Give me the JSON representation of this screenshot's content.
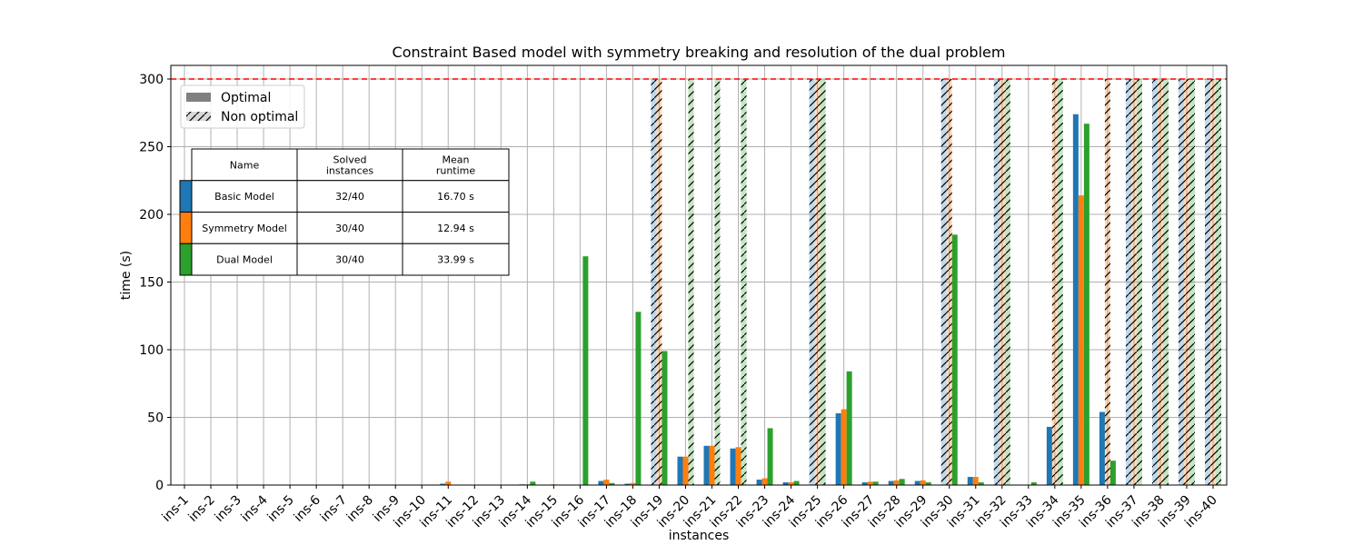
{
  "chart_data": {
    "type": "bar",
    "title": "Constraint Based model with symmetry breaking and resolution of the dual problem",
    "xlabel": "instances",
    "ylabel": "time (s)",
    "ylim": [
      0,
      310
    ],
    "yticks": [
      0,
      50,
      100,
      150,
      200,
      250,
      300
    ],
    "timeout": 300,
    "timeout_line_color": "#ff0000",
    "grid": true,
    "categories": [
      "ins-1",
      "ins-2",
      "ins-3",
      "ins-4",
      "ins-5",
      "ins-6",
      "ins-7",
      "ins-8",
      "ins-9",
      "ins-10",
      "ins-11",
      "ins-12",
      "ins-13",
      "ins-14",
      "ins-15",
      "ins-16",
      "ins-17",
      "ins-18",
      "ins-19",
      "ins-20",
      "ins-21",
      "ins-22",
      "ins-23",
      "ins-24",
      "ins-25",
      "ins-26",
      "ins-27",
      "ins-28",
      "ins-29",
      "ins-30",
      "ins-31",
      "ins-32",
      "ins-33",
      "ins-34",
      "ins-35",
      "ins-36",
      "ins-37",
      "ins-38",
      "ins-39",
      "ins-40"
    ],
    "series": [
      {
        "name": "Basic Model",
        "color": "#1f77b4",
        "values": [
          0,
          0,
          0,
          0,
          0,
          0,
          0,
          0,
          0,
          0,
          1,
          0,
          0.3,
          0.5,
          0.3,
          0.2,
          3,
          1,
          300,
          21,
          29,
          27,
          4,
          2,
          300,
          53,
          2,
          3,
          3,
          300,
          6,
          300,
          0,
          43,
          274,
          54,
          300,
          300,
          300,
          300
        ],
        "optimal": [
          true,
          true,
          true,
          true,
          true,
          true,
          true,
          true,
          true,
          true,
          true,
          true,
          true,
          true,
          true,
          true,
          true,
          true,
          false,
          true,
          true,
          true,
          true,
          true,
          false,
          true,
          true,
          true,
          true,
          false,
          true,
          false,
          true,
          true,
          true,
          true,
          false,
          false,
          false,
          false
        ]
      },
      {
        "name": "Symmetry Model",
        "color": "#ff7f0e",
        "values": [
          0,
          0,
          0,
          0,
          0,
          0,
          0,
          0,
          0,
          0.3,
          2.5,
          0.3,
          0.3,
          0.5,
          0.5,
          0.2,
          4,
          1.5,
          300,
          21,
          29,
          28,
          5,
          2,
          300,
          56,
          2.5,
          3.5,
          3.5,
          300,
          6,
          300,
          0,
          300,
          214,
          300,
          300,
          300,
          300,
          300
        ],
        "optimal": [
          true,
          true,
          true,
          true,
          true,
          true,
          true,
          true,
          true,
          true,
          true,
          true,
          true,
          true,
          true,
          true,
          true,
          true,
          false,
          true,
          true,
          true,
          true,
          true,
          false,
          true,
          true,
          true,
          true,
          false,
          true,
          false,
          true,
          false,
          true,
          false,
          false,
          false,
          false,
          false
        ]
      },
      {
        "name": "Dual Model",
        "color": "#2ca02c",
        "values": [
          0,
          0,
          0,
          0,
          0,
          0,
          0,
          0,
          0,
          0,
          0,
          0,
          0.3,
          2.5,
          0.3,
          169,
          1.5,
          128,
          99,
          300,
          300,
          300,
          42,
          3,
          300,
          84,
          2.5,
          4.5,
          2,
          185,
          2,
          300,
          2,
          300,
          267,
          18,
          300,
          300,
          300,
          300
        ],
        "optimal": [
          true,
          true,
          true,
          true,
          true,
          true,
          true,
          true,
          true,
          true,
          true,
          true,
          true,
          true,
          true,
          true,
          true,
          true,
          true,
          false,
          false,
          false,
          true,
          true,
          false,
          true,
          true,
          true,
          true,
          true,
          true,
          false,
          true,
          false,
          true,
          true,
          false,
          false,
          false,
          false
        ]
      }
    ],
    "legend": {
      "placement": "top-left",
      "items": [
        {
          "label": "Optimal",
          "style": "solid",
          "color": "#808080"
        },
        {
          "label": "Non optimal",
          "style": "hatched",
          "color": "#d9d9d9"
        }
      ]
    },
    "summary_table": {
      "headers": [
        "Name",
        "Solved\ninstances",
        "Mean\nruntime"
      ],
      "rows": [
        {
          "color": "#1f77b4",
          "cells": [
            "Basic Model",
            "32/40",
            "16.70 s"
          ]
        },
        {
          "color": "#ff7f0e",
          "cells": [
            "Symmetry Model",
            "30/40",
            "12.94 s"
          ]
        },
        {
          "color": "#2ca02c",
          "cells": [
            "Dual Model",
            "30/40",
            "33.99 s"
          ]
        }
      ]
    }
  }
}
